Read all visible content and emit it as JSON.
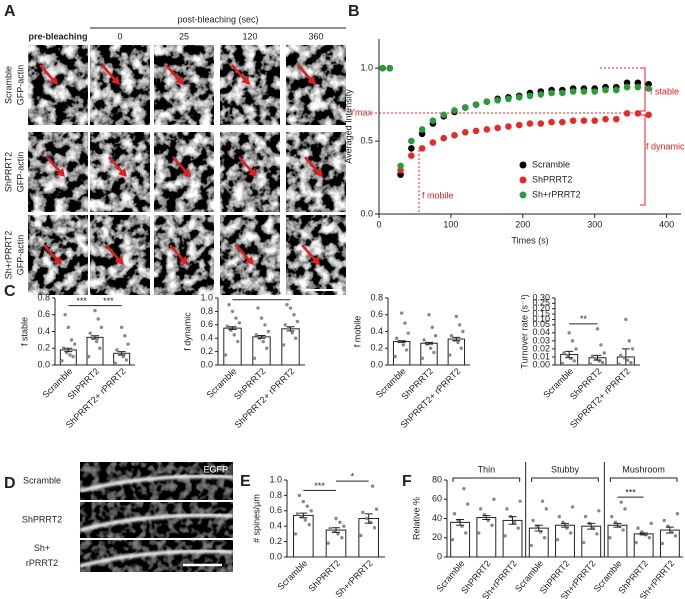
{
  "figure_a": {
    "panel": "A",
    "header": "post-bleaching (sec)",
    "columns": [
      "pre-bleaching",
      "0",
      "25",
      "120",
      "360"
    ],
    "rows": [
      [
        "Scramble",
        "GFP-actin"
      ],
      [
        "ShPRRT2",
        "GFP-actin"
      ],
      [
        "Sh+rPRRT2",
        "GFP-actin"
      ]
    ]
  },
  "figure_d": {
    "panel": "D",
    "channel": "EGFP",
    "rows": [
      [
        "Scramble"
      ],
      [
        "ShPRRT2"
      ],
      [
        "Sh+",
        "rPRRT2"
      ]
    ]
  },
  "chart_data": [
    {
      "panel": "B",
      "type": "scatter",
      "ylabel": "Averaged  Intensity",
      "xlabel": "Times (s)",
      "x": [
        5,
        15,
        30,
        45,
        60,
        75,
        90,
        105,
        120,
        135,
        150,
        165,
        180,
        195,
        210,
        225,
        240,
        255,
        270,
        285,
        300,
        315,
        330,
        345,
        360,
        375
      ],
      "series": [
        {
          "name": "Scramble",
          "color": "#000000",
          "values": [
            1.0,
            1.0,
            0.27,
            0.45,
            0.55,
            0.62,
            0.67,
            0.7,
            0.73,
            0.75,
            0.77,
            0.79,
            0.8,
            0.81,
            0.83,
            0.84,
            0.85,
            0.85,
            0.86,
            0.86,
            0.86,
            0.87,
            0.87,
            0.9,
            0.9,
            0.89
          ]
        },
        {
          "name": "ShPRRT2",
          "color": "#e32b2b",
          "values": [
            1.0,
            1.0,
            0.3,
            0.4,
            0.45,
            0.49,
            0.52,
            0.54,
            0.56,
            0.57,
            0.58,
            0.59,
            0.6,
            0.61,
            0.62,
            0.62,
            0.63,
            0.63,
            0.64,
            0.64,
            0.64,
            0.65,
            0.65,
            0.69,
            0.69,
            0.68
          ]
        },
        {
          "name": "Sh+rPRRT2",
          "color": "#2a9a3a",
          "values": [
            1.0,
            1.0,
            0.33,
            0.5,
            0.58,
            0.64,
            0.68,
            0.71,
            0.73,
            0.75,
            0.77,
            0.78,
            0.79,
            0.8,
            0.81,
            0.82,
            0.83,
            0.83,
            0.84,
            0.84,
            0.84,
            0.85,
            0.85,
            0.87,
            0.87,
            0.86
          ]
        }
      ],
      "xlim": [
        0,
        420
      ],
      "xticks": [
        0,
        100,
        200,
        300,
        400
      ],
      "ylim": [
        0,
        1.2
      ],
      "yticks": [
        {
          "value": 0,
          "label": "0.0"
        },
        {
          "value": 0.5,
          "label": "0.5"
        },
        {
          "value": 1,
          "label": "1.0"
        }
      ],
      "annotations": [
        "Ymax",
        "f stable",
        "f dynamic",
        "f mobile"
      ]
    },
    {
      "panel": "C",
      "type": "bar",
      "ylabel": "f stable",
      "categories": [
        "Scramble",
        "ShPRRT2",
        "ShPRRT2+ rPRRT2"
      ],
      "values": [
        0.18,
        0.33,
        0.14
      ],
      "errors": [
        0.02,
        0.02,
        0.02
      ],
      "points": [
        [
          0.05,
          0.1,
          0.12,
          0.15,
          0.2,
          0.25,
          0.3,
          0.45,
          0.6
        ],
        [
          0.1,
          0.2,
          0.28,
          0.32,
          0.38,
          0.45,
          0.55,
          0.65
        ],
        [
          0.02,
          0.06,
          0.1,
          0.13,
          0.18,
          0.25,
          0.35,
          0.45
        ]
      ],
      "ylim": [
        0,
        0.8
      ],
      "yticks": [
        {
          "value": 0,
          "label": "0.0"
        },
        0.2,
        0.4,
        0.6,
        0.8
      ],
      "significance": [
        "***",
        "***"
      ]
    },
    {
      "type": "bar",
      "ylabel": "f dynamic",
      "categories": [
        "Scramble",
        "ShPRRT2",
        "ShPRRT2+ rPRRT2"
      ],
      "values": [
        0.55,
        0.42,
        0.54
      ],
      "errors": [
        0.02,
        0.02,
        0.03
      ],
      "points": [
        [
          0.15,
          0.35,
          0.45,
          0.52,
          0.58,
          0.63,
          0.7,
          0.8,
          0.9
        ],
        [
          0.1,
          0.25,
          0.35,
          0.4,
          0.45,
          0.5,
          0.6,
          0.7,
          0.85
        ],
        [
          0.3,
          0.4,
          0.48,
          0.55,
          0.6,
          0.65,
          0.75,
          0.85,
          0.9
        ]
      ],
      "ylim": [
        0,
        1
      ],
      "yticks": [
        {
          "value": 0,
          "label": "0.0"
        },
        0.2,
        0.4,
        0.6,
        0.8,
        {
          "value": 1,
          "label": "1.0"
        }
      ],
      "significance": [
        "***",
        "***"
      ]
    },
    {
      "type": "bar",
      "ylabel": "f mobile",
      "categories": [
        "Scramble",
        "ShPRRT2",
        "ShPRRT2+ rPRRT2"
      ],
      "values": [
        0.28,
        0.26,
        0.31
      ],
      "errors": [
        0.01,
        0.01,
        0.02
      ],
      "points": [
        [
          0.1,
          0.18,
          0.24,
          0.28,
          0.32,
          0.38,
          0.5,
          0.62
        ],
        [
          0.08,
          0.15,
          0.2,
          0.25,
          0.3,
          0.35,
          0.45,
          0.6
        ],
        [
          0.12,
          0.2,
          0.27,
          0.3,
          0.35,
          0.4,
          0.48,
          0.58
        ]
      ],
      "ylim": [
        0,
        0.8
      ],
      "yticks": [
        {
          "value": 0,
          "label": "0.0"
        },
        0.2,
        0.4,
        0.6,
        0.8
      ]
    },
    {
      "type": "bar",
      "ylabel": "Turnover rate (s⁻¹)",
      "categories": [
        "Scramble",
        "ShPRRT2",
        "ShPRRT2+ rPRRT2"
      ],
      "values": [
        0.013,
        0.009,
        0.01
      ],
      "errors": [
        0.004,
        0.003,
        0.01
      ],
      "points": [
        [
          0.002,
          0.005,
          0.008,
          0.012,
          0.015,
          0.02,
          0.03,
          0.04
        ],
        [
          0.001,
          0.003,
          0.005,
          0.008,
          0.011,
          0.015,
          0.025,
          0.045
        ],
        [
          0.001,
          0.003,
          0.006,
          0.009,
          0.012,
          0.02,
          0.03,
          0.1
        ]
      ],
      "ylim": [
        0,
        0.3
      ],
      "ybreak": 0.05,
      "yticks": [
        {
          "value": 0,
          "label": "0.00"
        },
        0.01,
        0.02,
        0.03,
        0.04,
        0.05,
        {
          "value": 0.1,
          "label": "0.10"
        },
        0.15,
        {
          "value": 0.2,
          "label": "0.20"
        },
        0.25,
        {
          "value": 0.3,
          "label": "0.30"
        }
      ],
      "significance": [
        "**",
        null
      ]
    },
    {
      "panel": "E",
      "type": "bar",
      "ylabel": "# spines/µm",
      "categories": [
        "Scramble",
        "ShPRRT2",
        "Sh+rPRRT2"
      ],
      "values": [
        0.54,
        0.35,
        0.5
      ],
      "errors": [
        0.03,
        0.03,
        0.06
      ],
      "points": [
        [
          0.3,
          0.42,
          0.48,
          0.52,
          0.56,
          0.6,
          0.66,
          0.72,
          0.8
        ],
        [
          0.18,
          0.25,
          0.3,
          0.34,
          0.37,
          0.4,
          0.45,
          0.5
        ],
        [
          0.28,
          0.38,
          0.45,
          0.5,
          0.58,
          0.62,
          0.92
        ]
      ],
      "ylim": [
        0,
        1
      ],
      "yticks": [
        {
          "value": 0,
          "label": "0.0"
        },
        0.2,
        0.4,
        0.6,
        0.8,
        {
          "value": 1,
          "label": "1.0"
        }
      ],
      "significance": [
        "***",
        "*"
      ]
    },
    {
      "panel": "F",
      "type": "bar",
      "ylabel": "Relative %",
      "categories": [
        "Thin",
        "Stubby",
        "Mushroom"
      ],
      "series": [
        {
          "name": "Scramble",
          "values": [
            36,
            30,
            33
          ],
          "errors": [
            3,
            3,
            2
          ],
          "points": [
            [
              18,
              25,
              32,
              38,
              45,
              55,
              71
            ],
            [
              12,
              20,
              26,
              32,
              38,
              50,
              58
            ],
            [
              20,
              28,
              32,
              36,
              42,
              50,
              57
            ]
          ]
        },
        {
          "name": "ShPRRT2",
          "values": [
            41,
            33,
            24
          ],
          "errors": [
            2,
            2,
            1
          ],
          "points": [
            [
              25,
              33,
              38,
              44,
              50,
              60
            ],
            [
              18,
              25,
              30,
              36,
              42,
              52
            ],
            [
              15,
              20,
              23,
              26,
              30,
              35
            ]
          ]
        },
        {
          "name": "Sh+rPRRT2",
          "values": [
            38,
            32,
            28
          ],
          "errors": [
            4,
            3,
            3
          ],
          "points": [
            [
              22,
              30,
              36,
              42,
              50,
              58
            ],
            [
              15,
              24,
              30,
              35,
              42,
              48
            ],
            [
              14,
              22,
              27,
              32,
              38,
              45
            ]
          ]
        }
      ],
      "ylim": [
        0,
        80
      ],
      "yticks": [
        0,
        20,
        40,
        60,
        80
      ],
      "significance": [
        [
          null,
          null
        ],
        [
          null,
          null
        ],
        [
          "***",
          null
        ]
      ]
    }
  ]
}
